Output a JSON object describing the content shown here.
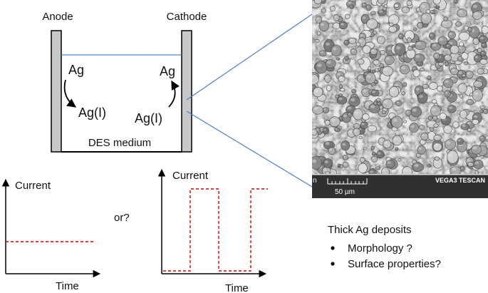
{
  "cell": {
    "anode_label": "Anode",
    "cathode_label": "Cathode",
    "anode_metal": "Ag",
    "anode_ion": "Ag(I)",
    "cathode_ion": "Ag(I)",
    "cathode_metal": "Ag",
    "medium_label": "DES medium"
  },
  "plot_constant": {
    "ylabel": "Current",
    "xlabel": "Time",
    "line_color": "#dd0000"
  },
  "or_label": "or?",
  "plot_pulsed": {
    "ylabel": "Current",
    "xlabel": "Time",
    "line_color": "#dd0000"
  },
  "sem_image": {
    "scale_label": "50 µm",
    "instrument_label": "VEGA3 TESCAN",
    "edge_letter": "n"
  },
  "notes": {
    "heading": "Thick Ag deposits",
    "bullets": [
      "Morphology ?",
      "Surface properties?"
    ]
  },
  "colors": {
    "electrode_fill": "#c8c8c8",
    "connector_line": "#4a7fd0",
    "level_line": "#4a7fd0"
  }
}
